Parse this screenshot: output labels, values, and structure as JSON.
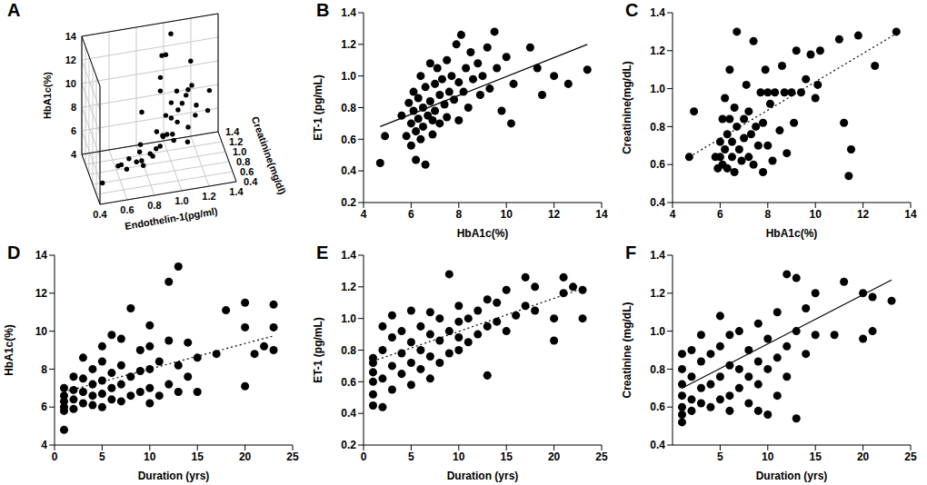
{
  "chart_data": [
    {
      "title": "A",
      "type": "scatter3d",
      "xlabel": "Endothelin-1(pg/ml)",
      "ylabel": "Creatinine(mg/dl)",
      "zlabel": "HbA1c(%)",
      "xlim": [
        0.4,
        1.4
      ],
      "xticks": [
        0.4,
        0.6,
        0.8,
        {
          "value": 1,
          "label": "1.0"
        },
        1.2,
        1.4
      ],
      "ylim": [
        0.4,
        1.4
      ],
      "yticks": [
        0.4,
        0.6,
        0.8,
        {
          "value": 1,
          "label": "1.0"
        },
        1.2,
        1.4
      ],
      "zlim": [
        4,
        14
      ],
      "zticks": [
        4,
        6,
        8,
        10,
        12,
        14
      ],
      "grid": true,
      "series": [
        {
          "type": "scatter",
          "marker": "circle",
          "color": "#000000",
          "x": [
            0.45,
            0.62,
            0.75,
            0.62,
            0.83,
            0.7,
            0.56,
            0.9,
            0.65,
            0.86,
            0.73,
            1.0,
            0.8,
            0.93,
            0.75,
            1.08,
            0.72,
            0.95,
            1.05,
            0.88,
            0.98,
            0.82,
            1.1,
            0.9,
            1.0,
            1.2,
            0.96,
            1.26,
            1.05,
            1.15,
            1.08,
            1.0,
            1.18,
            1.28,
            1.05,
            1.12,
            0.95,
            1.18,
            1.05,
            0.88,
            1.0,
            0.95,
            1.04
          ],
          "y": [
            0.64,
            0.88,
            0.64,
            0.58,
            0.72,
            0.64,
            0.6,
            0.84,
            0.68,
            0.76,
            0.58,
            0.84,
            0.64,
            0.9,
            0.8,
            0.68,
            0.62,
            0.84,
            1.02,
            0.88,
            0.76,
            1.25,
            0.8,
            0.7,
            0.98,
            1.1,
            0.98,
            0.92,
            0.98,
            0.78,
            0.98,
            0.98,
            1.2,
            0.98,
            1.05,
            0.95,
            1.2,
            1.26,
            0.54,
            0.68,
            1.28,
            1.12,
            1.3
          ],
          "z": [
            4.7,
            4.9,
            5.6,
            5.8,
            5.9,
            6.0,
            6.1,
            6.1,
            6.2,
            6.3,
            6.3,
            6.4,
            6.5,
            6.6,
            6.7,
            6.8,
            6.9,
            7.0,
            7.1,
            7.2,
            7.3,
            7.4,
            7.5,
            7.6,
            7.7,
            7.9,
            8.0,
            8.1,
            8.3,
            8.5,
            8.8,
            9.0,
            9.2,
            9.5,
            9.6,
            10.0,
            10.3,
            11.0,
            11.4,
            11.5,
            11.8,
            12.5,
            13.4
          ]
        }
      ]
    },
    {
      "title": "B",
      "type": "scatter",
      "xlabel": "HbA1c(%)",
      "ylabel": "ET-1 (pg/mL)",
      "xlim": [
        4,
        14
      ],
      "xticks": [
        4,
        6,
        8,
        10,
        12,
        14
      ],
      "ylim": [
        0.2,
        1.4
      ],
      "yticks": [
        0.2,
        0.4,
        0.6,
        0.8,
        {
          "value": 1,
          "label": "1.0"
        },
        1.2,
        1.4
      ],
      "series": [
        {
          "type": "scatter",
          "marker": "circle",
          "color": "#000000",
          "x": [
            4.7,
            4.9,
            5.6,
            5.8,
            5.9,
            6.0,
            6.0,
            6.1,
            6.1,
            6.2,
            6.2,
            6.3,
            6.3,
            6.4,
            6.4,
            6.5,
            6.5,
            6.6,
            6.6,
            6.7,
            6.8,
            6.8,
            6.9,
            6.9,
            7.0,
            7.0,
            7.1,
            7.2,
            7.2,
            7.3,
            7.4,
            7.5,
            7.5,
            7.6,
            7.7,
            7.8,
            7.9,
            8.0,
            8.0,
            8.1,
            8.2,
            8.3,
            8.4,
            8.5,
            8.6,
            8.8,
            8.9,
            9.0,
            9.2,
            9.3,
            9.5,
            9.6,
            9.8,
            10.0,
            10.2,
            10.3,
            11.0,
            11.3,
            11.5,
            12.0,
            12.6,
            13.4
          ],
          "values": [
            0.45,
            0.62,
            0.75,
            0.62,
            0.83,
            0.7,
            0.56,
            0.9,
            0.78,
            0.65,
            0.47,
            0.86,
            0.73,
            0.6,
            1.0,
            0.8,
            0.68,
            0.93,
            0.44,
            0.75,
            1.08,
            0.84,
            0.72,
            0.63,
            0.95,
            0.78,
            1.05,
            0.88,
            0.7,
            0.98,
            0.82,
            1.1,
            0.74,
            0.9,
            1.0,
            0.85,
            1.2,
            0.96,
            0.72,
            1.26,
            0.9,
            1.05,
            0.8,
            1.15,
            0.98,
            1.08,
            0.88,
            1.0,
            1.18,
            0.92,
            1.28,
            1.05,
            0.78,
            1.12,
            0.7,
            0.95,
            1.18,
            1.05,
            0.88,
            1.0,
            0.95,
            1.04
          ]
        },
        {
          "type": "line",
          "line_style": "solid",
          "color": "#000000",
          "x": [
            4.7,
            13.4
          ],
          "values": [
            0.68,
            1.2
          ]
        }
      ]
    },
    {
      "title": "C",
      "type": "scatter",
      "xlabel": "HbA1c(%)",
      "ylabel": "Creatinine(mg/dL)",
      "xlim": [
        4,
        14
      ],
      "xticks": [
        4,
        6,
        8,
        10,
        12,
        14
      ],
      "ylim": [
        0.4,
        1.4
      ],
      "yticks": [
        0.4,
        0.6,
        0.8,
        {
          "value": 1,
          "label": "1.0"
        },
        1.2,
        1.4
      ],
      "series": [
        {
          "type": "scatter",
          "marker": "circle",
          "color": "#000000",
          "x": [
            4.7,
            4.9,
            5.8,
            5.9,
            6.0,
            6.0,
            6.1,
            6.1,
            6.2,
            6.2,
            6.3,
            6.3,
            6.4,
            6.4,
            6.5,
            6.5,
            6.6,
            6.6,
            6.7,
            6.7,
            6.8,
            6.9,
            7.0,
            7.0,
            7.1,
            7.2,
            7.2,
            7.3,
            7.4,
            7.4,
            7.5,
            7.6,
            7.7,
            7.8,
            7.8,
            7.9,
            8.0,
            8.0,
            8.1,
            8.2,
            8.3,
            8.5,
            8.6,
            8.7,
            8.8,
            9.0,
            9.1,
            9.2,
            9.4,
            9.6,
            9.8,
            10.0,
            10.1,
            10.2,
            11.0,
            11.2,
            11.4,
            11.5,
            11.8,
            12.5,
            13.4
          ],
          "values": [
            0.64,
            0.88,
            0.64,
            0.58,
            0.72,
            0.64,
            0.84,
            0.6,
            0.95,
            0.68,
            0.76,
            0.58,
            1.1,
            0.84,
            0.64,
            0.72,
            0.9,
            0.56,
            1.3,
            0.8,
            0.68,
            0.62,
            0.84,
            0.74,
            1.02,
            0.64,
            0.88,
            0.76,
            1.25,
            0.6,
            0.8,
            0.7,
            0.98,
            0.56,
            0.82,
            1.1,
            0.98,
            0.7,
            0.92,
            0.62,
            0.98,
            0.78,
            1.12,
            0.98,
            0.66,
            0.98,
            0.82,
            1.2,
            0.98,
            1.05,
            1.18,
            0.95,
            1.02,
            1.2,
            1.26,
            0.82,
            0.54,
            0.68,
            1.28,
            1.12,
            1.3
          ]
        },
        {
          "type": "line",
          "line_style": "dotted",
          "color": "#000000",
          "x": [
            4.7,
            13.4
          ],
          "values": [
            0.64,
            1.29
          ]
        }
      ]
    },
    {
      "title": "D",
      "type": "scatter",
      "xlabel": "Duration (yrs)",
      "ylabel": "HbA1c(%)",
      "xlim": [
        0,
        25
      ],
      "xticks": [
        0,
        5,
        10,
        15,
        20,
        25
      ],
      "ylim": [
        4,
        14
      ],
      "yticks": [
        4,
        6,
        8,
        10,
        12,
        14
      ],
      "series": [
        {
          "type": "scatter",
          "marker": "circle",
          "color": "#000000",
          "x": [
            1,
            1,
            1,
            1,
            1,
            1,
            2,
            2,
            2,
            2,
            3,
            3,
            3,
            3,
            4,
            4,
            4,
            4,
            5,
            5,
            5,
            5,
            5,
            6,
            6,
            6,
            6,
            7,
            7,
            7,
            7,
            8,
            8,
            8,
            9,
            9,
            9,
            10,
            10,
            10,
            10,
            10,
            11,
            11,
            12,
            12,
            12,
            13,
            13,
            13,
            14,
            14,
            15,
            15,
            17,
            18,
            20,
            20,
            20,
            21,
            22,
            23,
            23,
            23
          ],
          "values": [
            4.8,
            5.8,
            6.0,
            6.3,
            6.6,
            7.0,
            5.9,
            6.4,
            6.9,
            7.6,
            6.2,
            6.8,
            7.5,
            8.6,
            6.1,
            6.6,
            7.2,
            8.0,
            6.0,
            6.7,
            7.4,
            8.4,
            9.2,
            6.4,
            7.0,
            7.8,
            9.8,
            6.3,
            7.2,
            8.2,
            9.6,
            6.6,
            7.6,
            11.2,
            6.8,
            7.9,
            9.0,
            6.2,
            7.0,
            8.0,
            9.2,
            10.3,
            6.6,
            8.4,
            7.2,
            9.5,
            12.6,
            6.8,
            8.2,
            13.4,
            7.6,
            9.4,
            6.8,
            8.6,
            8.8,
            11.1,
            7.1,
            10.2,
            11.5,
            8.8,
            9.2,
            10.2,
            11.4,
            9.0
          ]
        },
        {
          "type": "line",
          "line_style": "dotted",
          "color": "#000000",
          "x": [
            1,
            23
          ],
          "values": [
            6.8,
            9.75
          ]
        }
      ]
    },
    {
      "title": "E",
      "type": "scatter",
      "xlabel": "Duration (yrs)",
      "ylabel": "ET-1 (pg/mL)",
      "xlim": [
        0,
        25
      ],
      "xticks": [
        0,
        5,
        10,
        15,
        20,
        25
      ],
      "ylim": [
        0.2,
        1.4
      ],
      "yticks": [
        0.2,
        0.4,
        0.6,
        0.8,
        {
          "value": 1,
          "label": "1.0"
        },
        1.2,
        1.4
      ],
      "series": [
        {
          "type": "scatter",
          "marker": "circle",
          "color": "#000000",
          "x": [
            1,
            1,
            1,
            1,
            1,
            1,
            2,
            2,
            2,
            2,
            3,
            3,
            3,
            3,
            4,
            4,
            4,
            5,
            5,
            5,
            5,
            6,
            6,
            6,
            7,
            7,
            7,
            7,
            8,
            8,
            8,
            9,
            9,
            9,
            10,
            10,
            10,
            10,
            11,
            11,
            12,
            12,
            13,
            13,
            13,
            14,
            14,
            15,
            15,
            16,
            17,
            17,
            18,
            18,
            20,
            20,
            21,
            21,
            22,
            23,
            23
          ],
          "values": [
            0.45,
            0.52,
            0.6,
            0.66,
            0.72,
            0.75,
            0.44,
            0.62,
            0.8,
            0.95,
            0.55,
            0.7,
            0.88,
            1.02,
            0.65,
            0.78,
            0.92,
            0.58,
            0.72,
            0.85,
            1.05,
            0.68,
            0.8,
            0.95,
            0.62,
            0.76,
            0.9,
            1.04,
            0.72,
            0.86,
            1.0,
            0.78,
            0.92,
            1.28,
            0.8,
            0.88,
            0.98,
            1.08,
            0.85,
            1.0,
            0.9,
            1.05,
            0.64,
            0.95,
            1.12,
            0.98,
            1.1,
            0.92,
            1.18,
            1.02,
            1.08,
            1.26,
            1.05,
            1.2,
            0.86,
            1.0,
            1.16,
            1.26,
            1.2,
            1.0,
            1.18
          ]
        },
        {
          "type": "line",
          "line_style": "dotted",
          "color": "#000000",
          "x": [
            1,
            23
          ],
          "values": [
            0.73,
            1.19
          ]
        }
      ]
    },
    {
      "title": "F",
      "type": "scatter",
      "xlabel": "Duration (yrs)",
      "ylabel": "Creatinine (mg/dL)",
      "xlim": [
        0,
        25
      ],
      "xticks": [
        5,
        10,
        15,
        20,
        25
      ],
      "ylim": [
        0.4,
        1.4
      ],
      "yticks": [
        0.4,
        0.6,
        0.8,
        {
          "value": 1,
          "label": "1.0"
        },
        1.2,
        1.4
      ],
      "series": [
        {
          "type": "scatter",
          "marker": "circle",
          "color": "#000000",
          "x": [
            1,
            1,
            1,
            1,
            1,
            1,
            1,
            2,
            2,
            2,
            2,
            3,
            3,
            3,
            3,
            4,
            4,
            4,
            5,
            5,
            5,
            5,
            6,
            6,
            6,
            6,
            7,
            7,
            7,
            8,
            8,
            8,
            9,
            9,
            9,
            9,
            10,
            10,
            10,
            11,
            11,
            11,
            12,
            12,
            12,
            13,
            13,
            13,
            14,
            14,
            15,
            15,
            17,
            18,
            20,
            20,
            21,
            21,
            23
          ],
          "values": [
            0.52,
            0.56,
            0.6,
            0.66,
            0.72,
            0.8,
            0.88,
            0.58,
            0.64,
            0.76,
            0.9,
            0.62,
            0.7,
            0.84,
            0.98,
            0.6,
            0.72,
            0.88,
            0.64,
            0.76,
            0.92,
            1.08,
            0.58,
            0.66,
            0.82,
            0.98,
            0.7,
            0.8,
            1.0,
            0.62,
            0.76,
            0.9,
            0.58,
            0.72,
            0.84,
            1.04,
            0.56,
            0.8,
            0.96,
            0.66,
            0.86,
            1.1,
            0.76,
            0.92,
            1.3,
            0.54,
            1.0,
            1.28,
            0.88,
            1.12,
            0.98,
            1.2,
            0.98,
            1.26,
            0.96,
            1.2,
            1.0,
            1.18,
            1.16
          ]
        },
        {
          "type": "line",
          "line_style": "solid",
          "color": "#000000",
          "x": [
            1,
            23
          ],
          "values": [
            0.7,
            1.27
          ]
        }
      ]
    }
  ]
}
